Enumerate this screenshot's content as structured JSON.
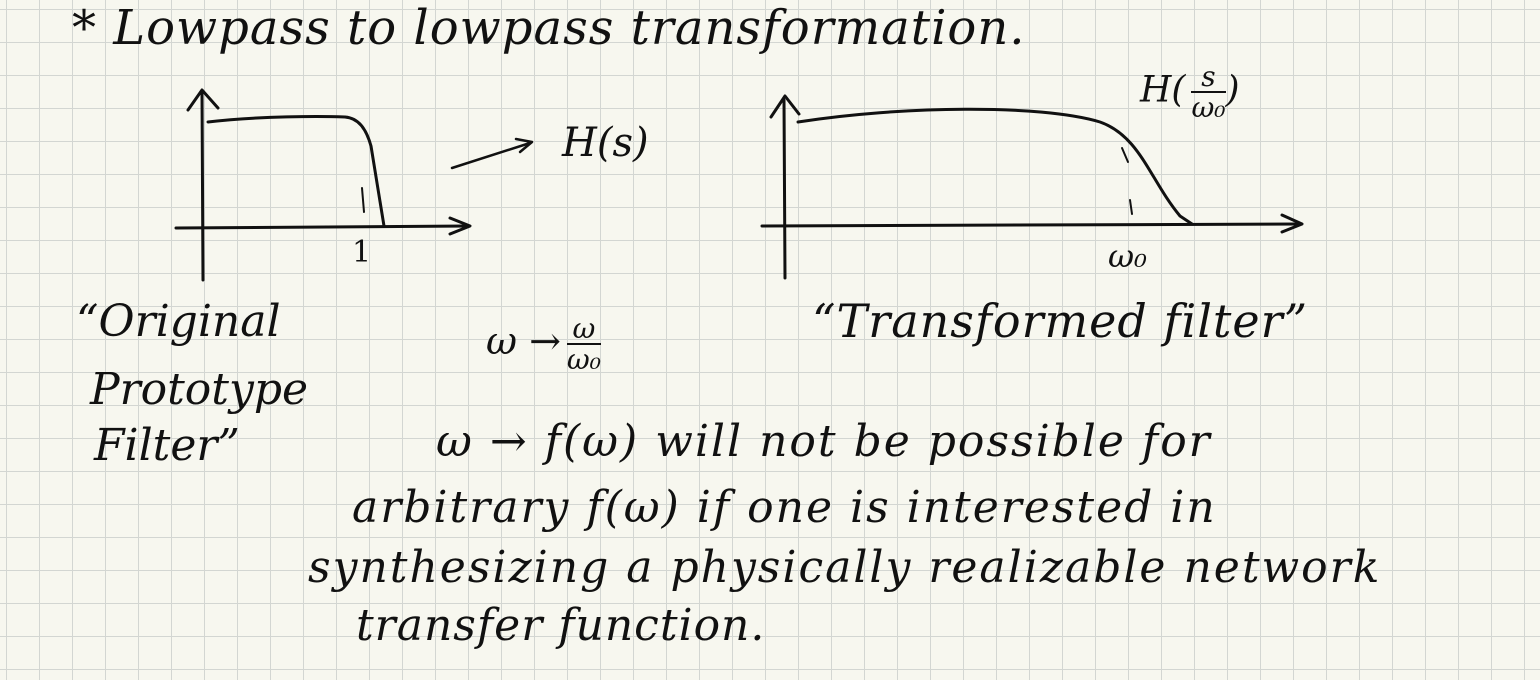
{
  "heading": "* Lowpass to lowpass transformation.",
  "left_plot": {
    "annotation": "H(s)",
    "tick": "1",
    "caption_lines": [
      "“Original",
      "Prototype",
      "Filter”"
    ]
  },
  "right_plot": {
    "annotation_prefix": "H(",
    "annotation_num": "s",
    "annotation_den": "ω₀",
    "annotation_suffix": ")",
    "tick": "ω₀",
    "caption": "“Transformed filter”"
  },
  "mapping": {
    "lhs": "ω →",
    "num": "ω",
    "den": "ω₀"
  },
  "paragraph": [
    "ω → f(ω) will not be possible for",
    "arbitrary f(ω) if one is interested in",
    "synthesizing a physically realizable network",
    "transfer function."
  ]
}
